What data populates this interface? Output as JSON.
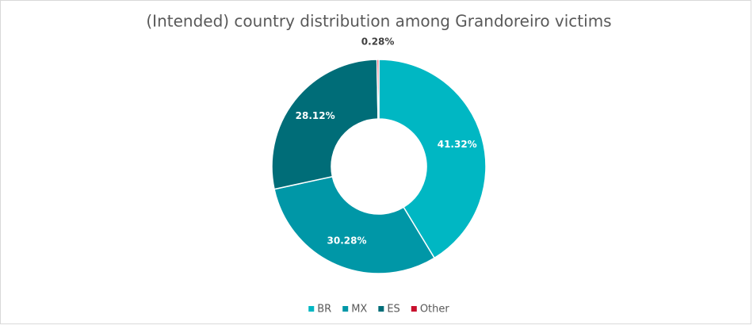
{
  "chart_data": {
    "type": "donut",
    "title": "(Intended) country distribution among Grandoreiro victims",
    "categories": [
      "BR",
      "MX",
      "ES",
      "Other"
    ],
    "values": [
      41.32,
      30.28,
      28.12,
      0.28
    ],
    "value_labels": [
      "41.32%",
      "30.28%",
      "28.12%",
      "0.28%"
    ],
    "colors": [
      "#00b7c3",
      "#0097a7",
      "#006d78",
      "#c8102e"
    ],
    "legend": "bottom"
  }
}
